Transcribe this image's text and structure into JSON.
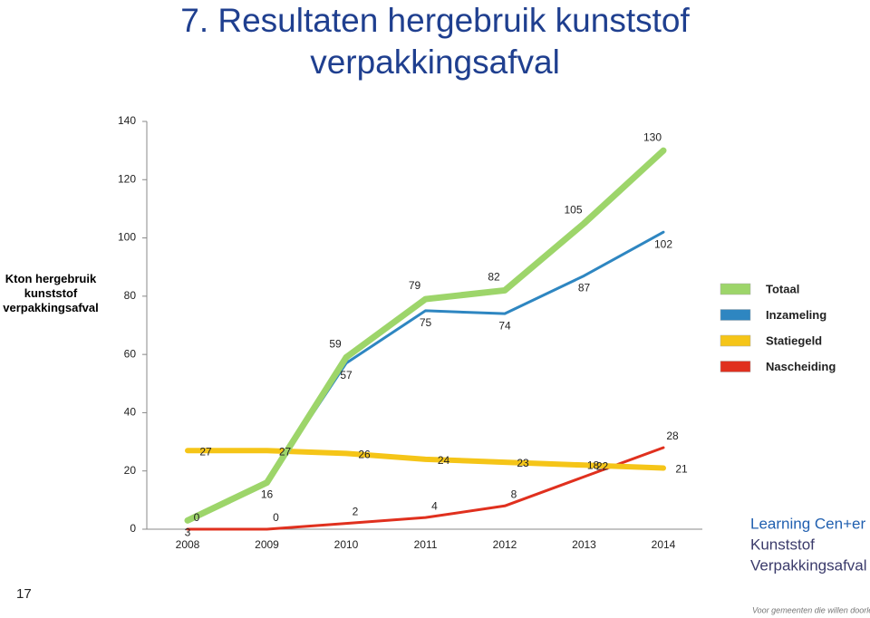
{
  "chart_data": {
    "type": "line",
    "title": "7. Resultaten hergebruik kunststof verpakkingsafval",
    "y_label": "Kton hergebruik kunststof verpakkingsafval",
    "categories": [
      "2008",
      "2009",
      "2010",
      "2011",
      "2012",
      "2013",
      "2014"
    ],
    "series": [
      {
        "name": "Totaal",
        "color": "#9dd56a",
        "values": [
          3,
          16,
          59,
          79,
          82,
          105,
          130
        ],
        "value_labels": [
          null,
          null,
          "59",
          "79",
          "82",
          "105",
          "130"
        ]
      },
      {
        "name": "Inzameling",
        "color": "#2e86c1",
        "values": [
          3,
          16,
          57,
          75,
          74,
          87,
          102
        ],
        "value_labels": [
          "3",
          "16",
          "57",
          "75",
          "74",
          "87",
          "102"
        ]
      },
      {
        "name": "Statiegeld",
        "color": "#f5c518",
        "values": [
          27,
          27,
          26,
          24,
          23,
          22,
          21
        ],
        "value_labels": [
          "27",
          "27",
          "26",
          "24",
          "23",
          "22",
          "21"
        ]
      },
      {
        "name": "Nascheiding",
        "color": "#e0301e",
        "values": [
          0,
          0,
          2,
          4,
          8,
          18,
          28
        ],
        "value_labels": [
          "0",
          "0",
          "2",
          "4",
          "8",
          "18",
          "28"
        ]
      }
    ],
    "ylim": [
      0,
      140
    ],
    "yticks": [
      0,
      20,
      40,
      60,
      80,
      100,
      120,
      140
    ],
    "grid": false,
    "legend": "right"
  },
  "logo": {
    "line1": "Learning Cen+er",
    "line2": "Kunststof",
    "line3": "Verpakkingsafval",
    "tagline": "Voor gemeenten die willen doorleren"
  },
  "page_number": "17"
}
